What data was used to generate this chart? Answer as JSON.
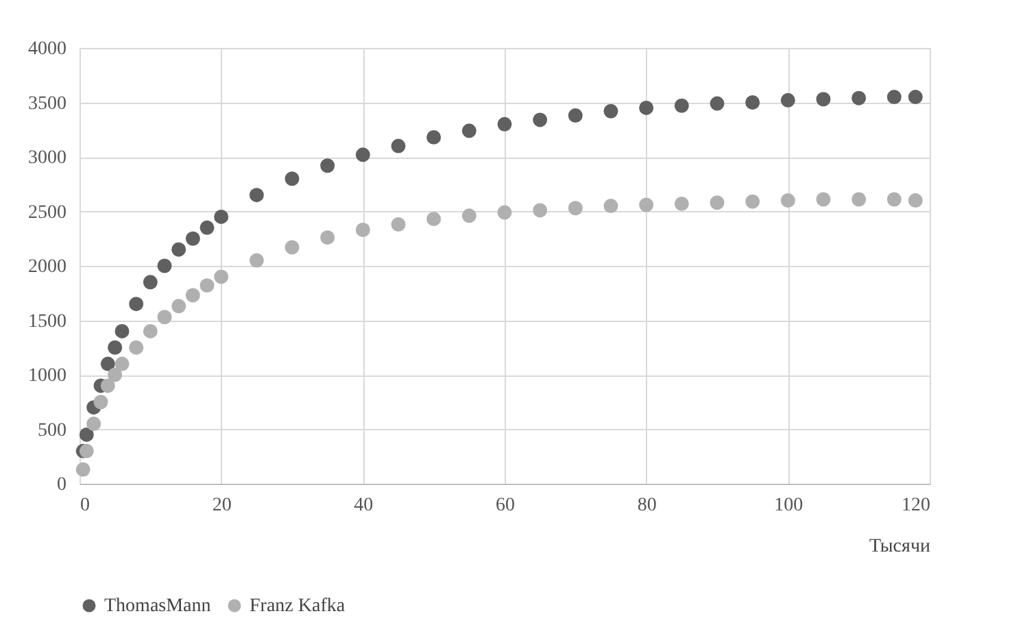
{
  "chart_data": {
    "type": "scatter",
    "xlabel": "Тысячи",
    "x": [
      0.5,
      1,
      2,
      3,
      4,
      5,
      6,
      8,
      10,
      12,
      14,
      16,
      18,
      20,
      25,
      30,
      35,
      40,
      45,
      50,
      55,
      60,
      65,
      70,
      75,
      80,
      85,
      90,
      95,
      100,
      105,
      110,
      115,
      118
    ],
    "series": [
      {
        "name": "ThomasMann",
        "color": "#606060",
        "values": [
          300,
          450,
          700,
          900,
          1100,
          1250,
          1400,
          1650,
          1850,
          2000,
          2150,
          2250,
          2350,
          2450,
          2650,
          2800,
          2920,
          3020,
          3100,
          3180,
          3240,
          3300,
          3340,
          3380,
          3420,
          3450,
          3470,
          3490,
          3500,
          3520,
          3530,
          3540,
          3550,
          3550
        ]
      },
      {
        "name": "Franz Kafka",
        "color": "#b0b0b0",
        "values": [
          130,
          300,
          550,
          750,
          900,
          1000,
          1100,
          1250,
          1400,
          1530,
          1630,
          1730,
          1820,
          1900,
          2050,
          2170,
          2260,
          2330,
          2380,
          2430,
          2460,
          2490,
          2510,
          2530,
          2550,
          2560,
          2570,
          2580,
          2590,
          2600,
          2610,
          2610,
          2610,
          2600
        ]
      }
    ],
    "xlim": [
      0,
      120
    ],
    "xticks": [
      0,
      20,
      40,
      60,
      80,
      100,
      120
    ],
    "ylim": [
      0,
      4000
    ],
    "yticks": [
      0,
      500,
      1000,
      1500,
      2000,
      2500,
      3000,
      3500,
      4000
    ],
    "grid": true,
    "legend": "bottom"
  }
}
